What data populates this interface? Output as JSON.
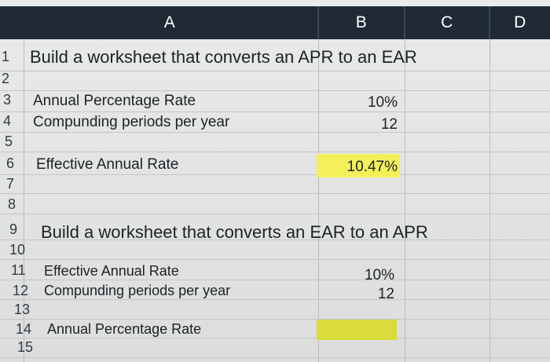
{
  "columns": [
    "A",
    "B",
    "C",
    "D"
  ],
  "rows": [
    "1",
    "2",
    "3",
    "4",
    "5",
    "6",
    "7",
    "8",
    "9",
    "10",
    "11",
    "12",
    "13",
    "14",
    "15"
  ],
  "section1": {
    "title": "Build a worksheet that converts an APR to an EAR",
    "apr_label": "Annual Percentage Rate",
    "apr_value": "10%",
    "periods_label": "Compunding periods per year",
    "periods_value": "12",
    "ear_label": "Effective Annual Rate",
    "ear_value": "10.47%"
  },
  "section2": {
    "title": "Build a worksheet that converts an EAR to an APR",
    "ear_label": "Effective Annual Rate",
    "ear_value": "10%",
    "periods_label": "Compunding periods per year",
    "periods_value": "12",
    "apr_label": "Annual Percentage Rate",
    "apr_value": ""
  },
  "colors": {
    "header_bg": "#1f2a36",
    "highlight": "#f3f05a"
  }
}
